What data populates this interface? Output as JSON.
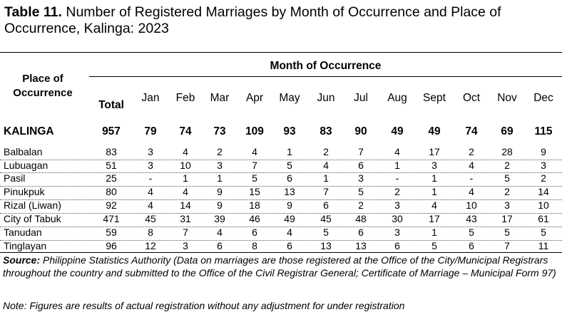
{
  "title": {
    "label": "Table 11.",
    "text": " Number of Registered Marriages by Month of Occurrence and Place of Occurrence, Kalinga: 2023"
  },
  "header": {
    "place": "Place of Occurrence",
    "month_group": "Month of Occurrence",
    "total": "Total",
    "months": [
      "Jan",
      "Feb",
      "Mar",
      "Apr",
      "May",
      "Jun",
      "Jul",
      "Aug",
      "Sept",
      "Oct",
      "Nov",
      "Dec"
    ]
  },
  "rows": [
    {
      "name": "KALINGA",
      "total": "957",
      "values": [
        "79",
        "74",
        "73",
        "109",
        "93",
        "83",
        "90",
        "49",
        "49",
        "74",
        "69",
        "115"
      ]
    },
    {
      "name": "Balbalan",
      "total": "83",
      "values": [
        "3",
        "4",
        "2",
        "4",
        "1",
        "2",
        "7",
        "4",
        "17",
        "2",
        "28",
        "9"
      ]
    },
    {
      "name": "Lubuagan",
      "total": "51",
      "values": [
        "3",
        "10",
        "3",
        "7",
        "5",
        "4",
        "6",
        "1",
        "3",
        "4",
        "2",
        "3"
      ]
    },
    {
      "name": "Pasil",
      "total": "25",
      "values": [
        "-",
        "1",
        "1",
        "5",
        "6",
        "1",
        "3",
        "-",
        "1",
        "-",
        "5",
        "2"
      ]
    },
    {
      "name": "Pinukpuk",
      "total": "80",
      "values": [
        "4",
        "4",
        "9",
        "15",
        "13",
        "7",
        "5",
        "2",
        "1",
        "4",
        "2",
        "14"
      ]
    },
    {
      "name": "Rizal (Liwan)",
      "total": "92",
      "values": [
        "4",
        "14",
        "9",
        "18",
        "9",
        "6",
        "2",
        "3",
        "4",
        "10",
        "3",
        "10"
      ]
    },
    {
      "name": "City of Tabuk",
      "total": "471",
      "values": [
        "45",
        "31",
        "39",
        "46",
        "49",
        "45",
        "48",
        "30",
        "17",
        "43",
        "17",
        "61"
      ]
    },
    {
      "name": "Tanudan",
      "total": "59",
      "values": [
        "8",
        "7",
        "4",
        "6",
        "4",
        "5",
        "6",
        "3",
        "1",
        "5",
        "5",
        "5"
      ]
    },
    {
      "name": "Tinglayan",
      "total": "96",
      "values": [
        "12",
        "3",
        "6",
        "8",
        "6",
        "13",
        "13",
        "6",
        "5",
        "6",
        "7",
        "11"
      ]
    }
  ],
  "source": {
    "label": "Source:",
    "text": " Philippine Statistics Authority (Data on marriages are those registered at the Office of the City/Municipal Registrars throughout the country and submitted to the Office of the Civil Registrar General; Certificate of Marriage – Municipal Form 97)"
  },
  "note": "Note:  Figures are results of actual registration without any adjustment for under registration"
}
